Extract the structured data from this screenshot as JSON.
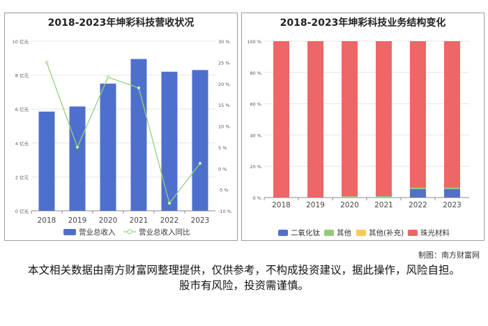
{
  "charts": {
    "left": {
      "title": "2018-2023年坤彩科技营收状况",
      "legend": [
        "营业总收入",
        "营业总收入同比"
      ]
    },
    "right": {
      "title": "2018-2023年坤彩科技业务结构变化",
      "legend": [
        "二氧化钛",
        "其他",
        "其他(补充)",
        "珠光材料"
      ]
    }
  },
  "footer": {
    "credit": "制图：南方财富网",
    "disclaimer": "本文相关数据由南方财富网整理提供，仅供参考，不构成投资建议，据此操作，风险自担。股市有风险，投资需谨慎。"
  },
  "colors": {
    "bar_blue": "#4f6fcc",
    "line_green": "#90d47a",
    "titanium": "#5470c6",
    "other": "#91cc75",
    "other_supp": "#fac858",
    "pearl": "#ee6666"
  },
  "chart_data": [
    {
      "type": "bar",
      "title": "2018-2023年坤彩科技营收状况",
      "categories": [
        "2018",
        "2019",
        "2020",
        "2021",
        "2022",
        "2023"
      ],
      "y_ticks": [
        "0 亿元",
        "2 亿元",
        "4 亿元",
        "6 亿元",
        "8 亿元",
        "10 亿元"
      ],
      "y2_ticks": [
        "-10 %",
        "-5 %",
        "0 %",
        "5 %",
        "10 %",
        "15 %",
        "20 %",
        "25 %",
        "30 %"
      ],
      "ylim": [
        0,
        10
      ],
      "y2lim": [
        -10,
        30
      ],
      "series": [
        {
          "name": "营业总收入",
          "type": "bar",
          "axis": "left",
          "values": [
            5.85,
            6.15,
            7.5,
            8.95,
            8.2,
            8.3
          ]
        },
        {
          "name": "营业总收入同比",
          "type": "line",
          "axis": "right",
          "values": [
            25.0,
            5.0,
            21.5,
            19.0,
            -8.2,
            1.2
          ]
        }
      ],
      "legend_position": "bottom"
    },
    {
      "type": "bar",
      "stacked": true,
      "title": "2018-2023年坤彩科技业务结构变化",
      "categories": [
        "2018",
        "2019",
        "2020",
        "2021",
        "2022",
        "2023"
      ],
      "y_ticks": [
        "0 %",
        "20 %",
        "40 %",
        "60 %",
        "80 %",
        "100 %"
      ],
      "ylim": [
        0,
        100
      ],
      "series": [
        {
          "name": "二氧化钛",
          "values": [
            0,
            0,
            0,
            0,
            5.5,
            5.5
          ]
        },
        {
          "name": "其他",
          "values": [
            0,
            0,
            0.8,
            0.9,
            0.8,
            0.8
          ]
        },
        {
          "name": "其他(补充)",
          "values": [
            0,
            0,
            0,
            0,
            0,
            0
          ]
        },
        {
          "name": "珠光材料",
          "values": [
            100,
            100,
            99.2,
            99.1,
            93.7,
            93.7
          ]
        }
      ],
      "legend_position": "bottom"
    }
  ]
}
